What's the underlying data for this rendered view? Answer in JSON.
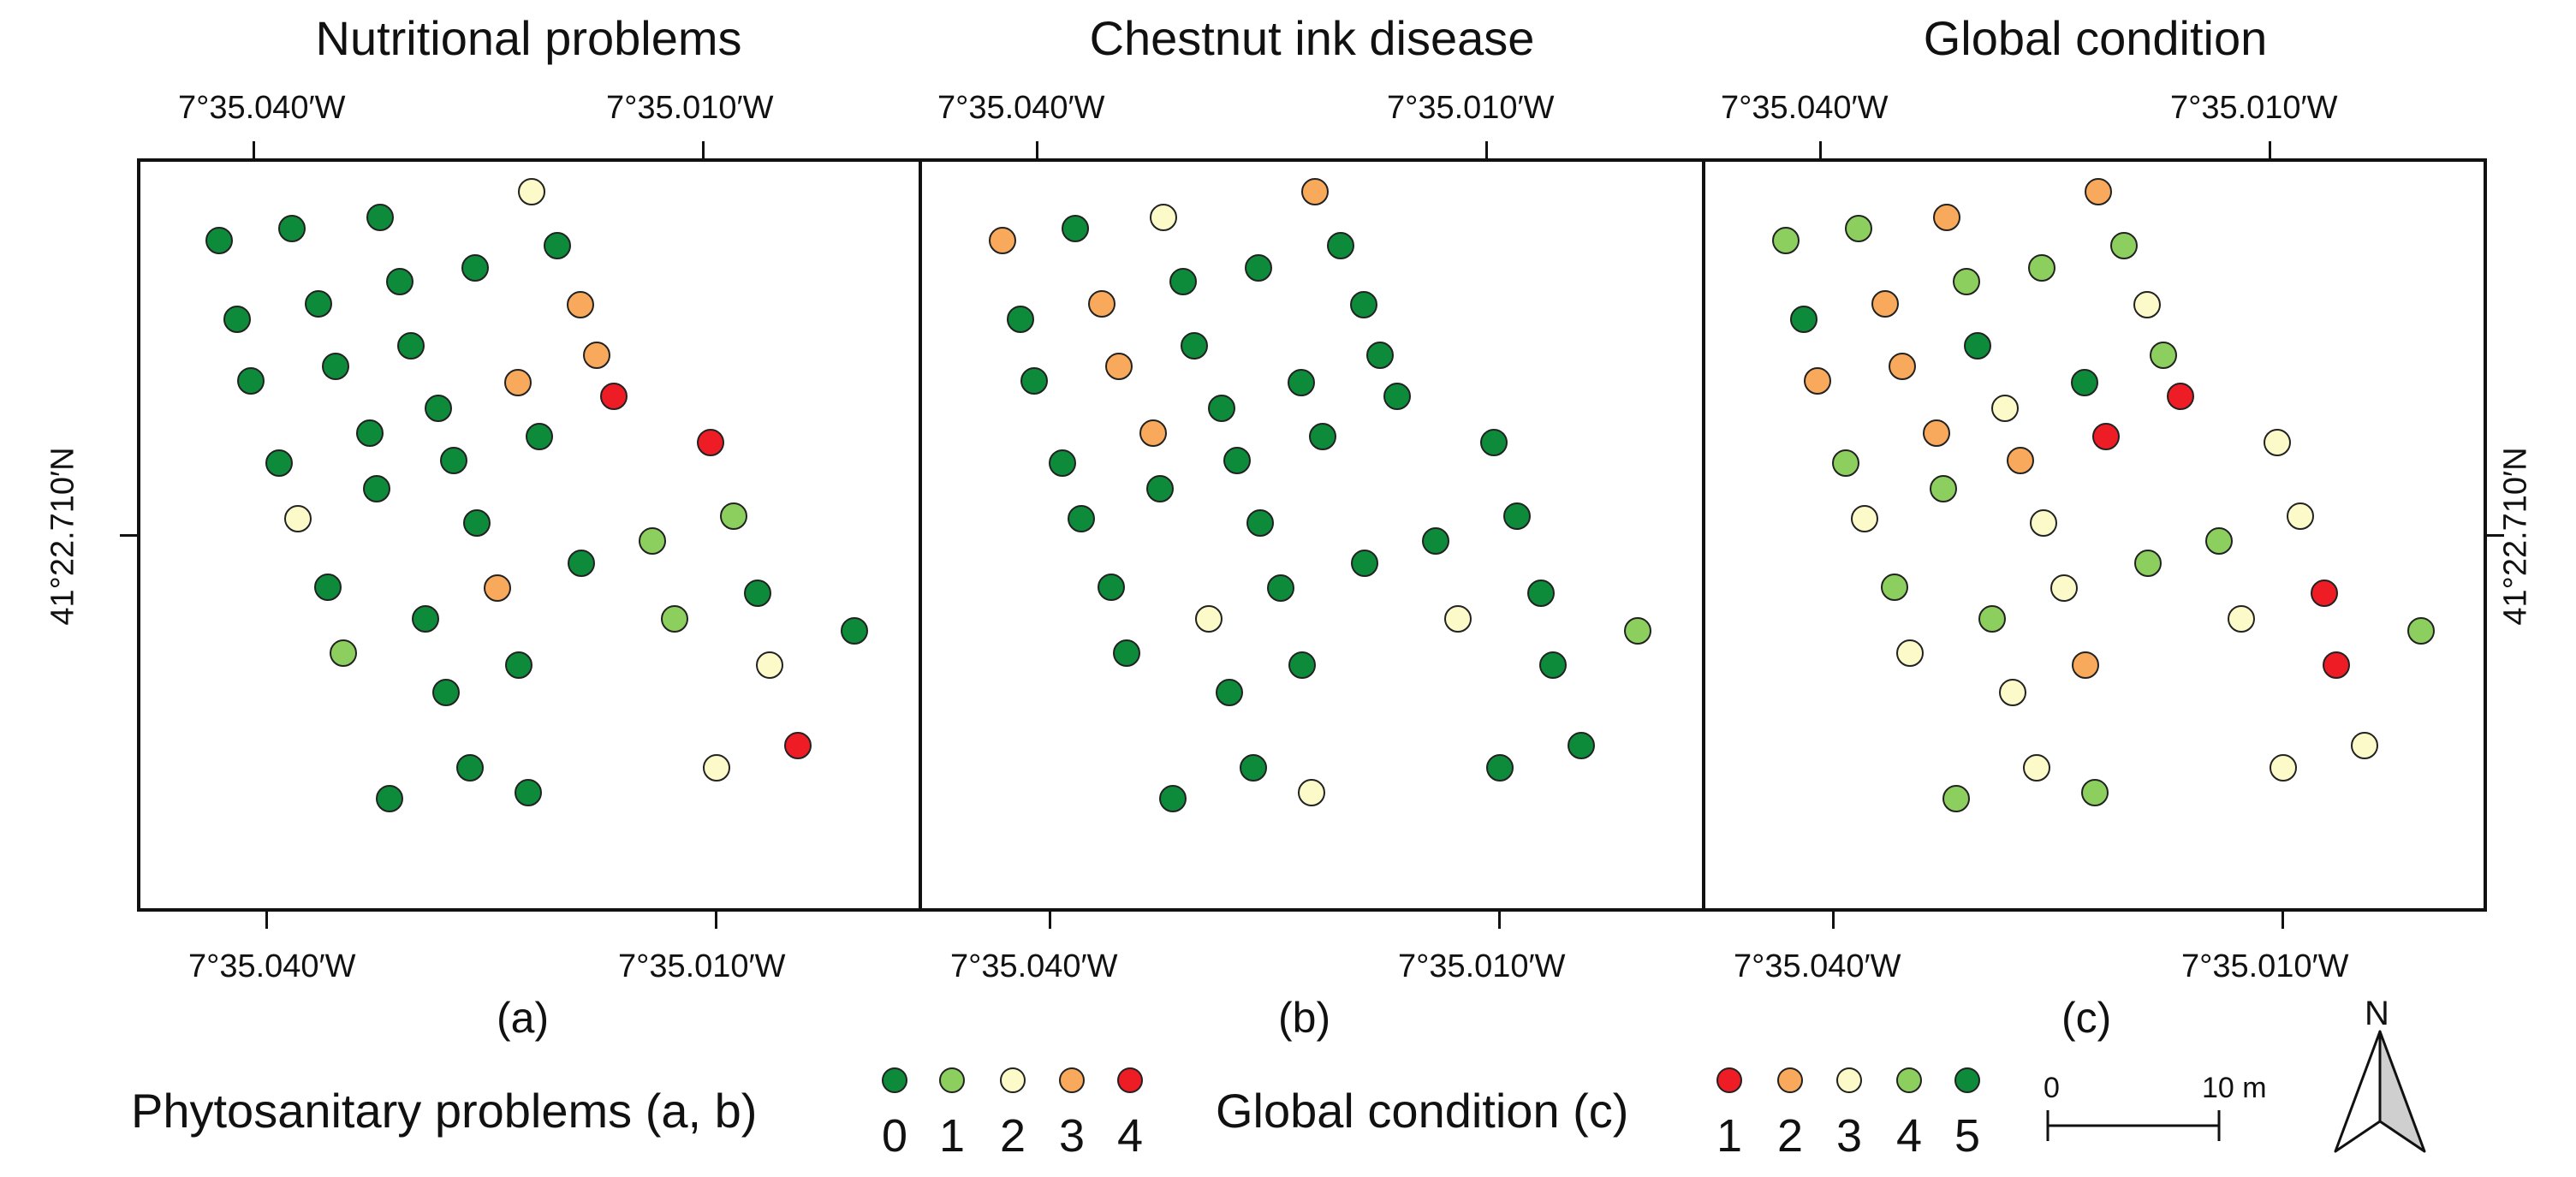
{
  "panels": [
    {
      "id": "a",
      "title": "Nutritional problems",
      "label": "(a)",
      "values": [
        0,
        0,
        0,
        2,
        0,
        0,
        0,
        0,
        3,
        0,
        0,
        0,
        3,
        0,
        0,
        3,
        4,
        0,
        0,
        4,
        0,
        0,
        0,
        0,
        2,
        1,
        0,
        3,
        1,
        0,
        0,
        0,
        1,
        0,
        1,
        4,
        0,
        2,
        0,
        0,
        2,
        0,
        0
      ]
    },
    {
      "id": "b",
      "title": "Chestnut ink disease",
      "label": "(b)",
      "values": [
        3,
        0,
        2,
        3,
        0,
        0,
        0,
        3,
        0,
        0,
        3,
        0,
        0,
        0,
        0,
        0,
        0,
        3,
        0,
        0,
        0,
        0,
        0,
        0,
        0,
        0,
        0,
        0,
        0,
        0,
        0,
        2,
        2,
        1,
        0,
        0,
        0,
        0,
        0,
        0,
        0,
        2,
        0
      ]
    },
    {
      "id": "c",
      "title": "Global condition",
      "label": "(c)",
      "values": [
        4,
        4,
        2,
        2,
        4,
        4,
        5,
        2,
        3,
        4,
        2,
        5,
        4,
        2,
        3,
        5,
        1,
        2,
        1,
        3,
        4,
        2,
        4,
        3,
        3,
        4,
        4,
        3,
        3,
        4,
        1,
        4,
        3,
        4,
        3,
        3,
        2,
        1,
        3,
        3,
        3,
        4,
        4
      ]
    }
  ],
  "coordinates": {
    "lon_left": "7°35.040′W",
    "lon_right": "7°35.010′W",
    "lat": "41°22.710′N"
  },
  "legend_a_b": {
    "title": "Phytosanitary problems (a, b)",
    "classes": [
      {
        "label": "0",
        "color": "#0d8a3a"
      },
      {
        "label": "1",
        "color": "#8ccf5e"
      },
      {
        "label": "2",
        "color": "#fbfac8"
      },
      {
        "label": "3",
        "color": "#f8a95b"
      },
      {
        "label": "4",
        "color": "#ee1c24"
      }
    ]
  },
  "legend_c": {
    "title": "Global condition (c)",
    "classes": [
      {
        "label": "1",
        "color": "#ee1c24"
      },
      {
        "label": "2",
        "color": "#f8a95b"
      },
      {
        "label": "3",
        "color": "#fbfac8"
      },
      {
        "label": "4",
        "color": "#8ccf5e"
      },
      {
        "label": "5",
        "color": "#0d8a3a"
      }
    ]
  },
  "scale_bar": {
    "start": "0",
    "end": "10 m"
  },
  "north_arrow": {
    "label": "N"
  }
}
